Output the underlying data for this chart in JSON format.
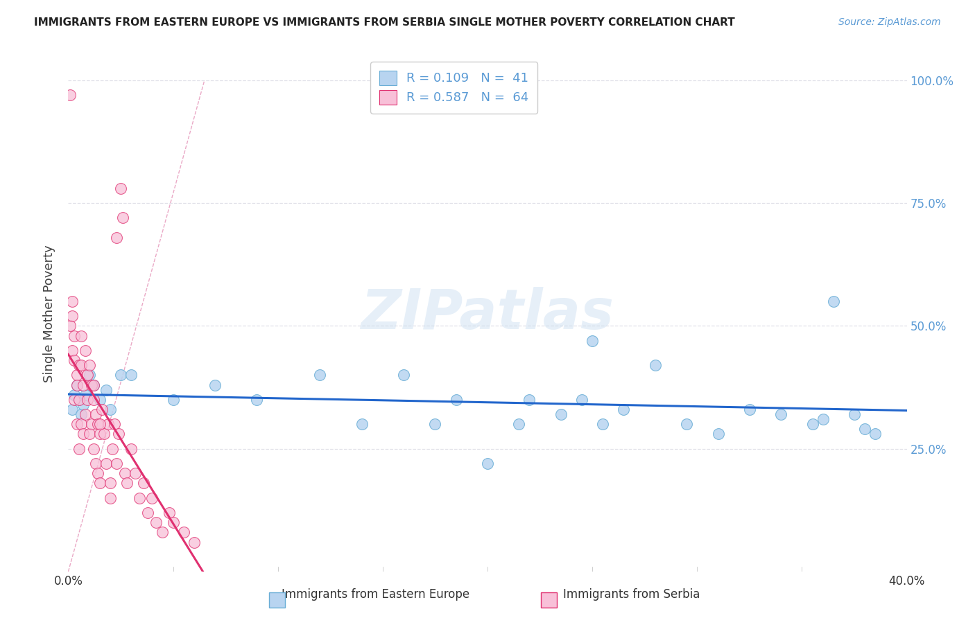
{
  "title": "IMMIGRANTS FROM EASTERN EUROPE VS IMMIGRANTS FROM SERBIA SINGLE MOTHER POVERTY CORRELATION CHART",
  "source": "Source: ZipAtlas.com",
  "ylabel": "Single Mother Poverty",
  "watermark": "ZIPatlas",
  "xlim": [
    0.0,
    0.4
  ],
  "ylim": [
    0.0,
    1.05
  ],
  "trendline1_color": "#2266cc",
  "trendline2_color": "#e03070",
  "diag_color": "#e8a0c0",
  "series1_face": "#b8d4f0",
  "series1_edge": "#6aaed6",
  "series2_face": "#f8c0d8",
  "series2_edge": "#e03070",
  "grid_color": "#e0e0e8",
  "right_tick_color": "#5b9bd5",
  "ee_x": [
    0.002,
    0.003,
    0.004,
    0.005,
    0.006,
    0.007,
    0.008,
    0.01,
    0.012,
    0.015,
    0.018,
    0.02,
    0.025,
    0.03,
    0.05,
    0.07,
    0.09,
    0.12,
    0.14,
    0.16,
    0.175,
    0.185,
    0.2,
    0.215,
    0.22,
    0.235,
    0.245,
    0.255,
    0.265,
    0.28,
    0.295,
    0.31,
    0.325,
    0.34,
    0.355,
    0.365,
    0.375,
    0.385,
    0.25,
    0.36,
    0.38
  ],
  "ee_y": [
    0.33,
    0.36,
    0.38,
    0.35,
    0.32,
    0.34,
    0.36,
    0.4,
    0.38,
    0.35,
    0.37,
    0.33,
    0.4,
    0.4,
    0.35,
    0.38,
    0.35,
    0.4,
    0.3,
    0.4,
    0.3,
    0.35,
    0.22,
    0.3,
    0.35,
    0.32,
    0.35,
    0.3,
    0.33,
    0.42,
    0.3,
    0.28,
    0.33,
    0.32,
    0.3,
    0.55,
    0.32,
    0.28,
    0.47,
    0.31,
    0.29
  ],
  "srb_x": [
    0.001,
    0.001,
    0.002,
    0.002,
    0.002,
    0.003,
    0.003,
    0.003,
    0.004,
    0.004,
    0.004,
    0.005,
    0.005,
    0.005,
    0.006,
    0.006,
    0.006,
    0.007,
    0.007,
    0.008,
    0.008,
    0.009,
    0.009,
    0.01,
    0.01,
    0.011,
    0.011,
    0.012,
    0.012,
    0.013,
    0.013,
    0.014,
    0.014,
    0.015,
    0.015,
    0.016,
    0.017,
    0.018,
    0.019,
    0.02,
    0.021,
    0.022,
    0.023,
    0.024,
    0.025,
    0.026,
    0.027,
    0.028,
    0.03,
    0.032,
    0.034,
    0.036,
    0.038,
    0.04,
    0.042,
    0.045,
    0.048,
    0.05,
    0.055,
    0.06,
    0.023,
    0.015,
    0.012,
    0.02
  ],
  "srb_y": [
    0.97,
    0.5,
    0.55,
    0.45,
    0.52,
    0.48,
    0.43,
    0.35,
    0.4,
    0.38,
    0.3,
    0.42,
    0.35,
    0.25,
    0.48,
    0.42,
    0.3,
    0.38,
    0.28,
    0.45,
    0.32,
    0.4,
    0.35,
    0.42,
    0.28,
    0.38,
    0.3,
    0.35,
    0.25,
    0.32,
    0.22,
    0.3,
    0.2,
    0.28,
    0.18,
    0.33,
    0.28,
    0.22,
    0.3,
    0.18,
    0.25,
    0.3,
    0.22,
    0.28,
    0.78,
    0.72,
    0.2,
    0.18,
    0.25,
    0.2,
    0.15,
    0.18,
    0.12,
    0.15,
    0.1,
    0.08,
    0.12,
    0.1,
    0.08,
    0.06,
    0.68,
    0.3,
    0.38,
    0.15
  ]
}
